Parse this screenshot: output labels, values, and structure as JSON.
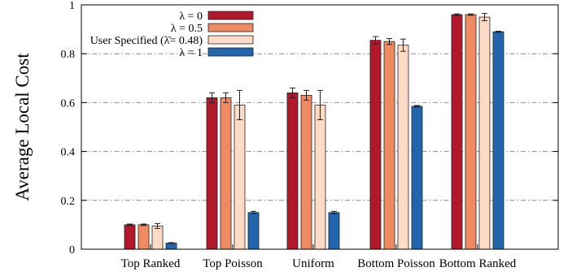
{
  "chart_data": {
    "type": "bar",
    "title": "",
    "xlabel": "",
    "ylabel": "Average Local Cost",
    "ylim": [
      0,
      1
    ],
    "yticks": [
      0,
      0.2,
      0.4,
      0.6,
      0.8,
      1
    ],
    "ytick_labels": [
      "0",
      "0.2",
      "0.4",
      "0.6",
      "0.8",
      "1"
    ],
    "grid": "horizontal dash-dot",
    "legend_position": "top-center",
    "categories": [
      "Top Ranked",
      "Top Poisson",
      "Uniform",
      "Bottom Poisson",
      "Bottom Ranked"
    ],
    "series": [
      {
        "name": "λ = 0",
        "color": "#b2182b",
        "values": [
          0.1,
          0.62,
          0.64,
          0.855,
          0.96
        ],
        "errors": [
          0.003,
          0.02,
          0.02,
          0.015,
          0.003
        ]
      },
      {
        "name": "λ = 0.5",
        "color": "#ef8a62",
        "values": [
          0.1,
          0.62,
          0.63,
          0.85,
          0.96
        ],
        "errors": [
          0.003,
          0.02,
          0.02,
          0.012,
          0.003
        ]
      },
      {
        "name": "User Specified (λ̄= 0.48)",
        "color": "#fddbc7",
        "values": [
          0.095,
          0.59,
          0.59,
          0.835,
          0.95
        ],
        "errors": [
          0.01,
          0.06,
          0.06,
          0.025,
          0.015
        ]
      },
      {
        "name": "λ = 1",
        "color": "#2166ac",
        "values": [
          0.025,
          0.15,
          0.15,
          0.585,
          0.89
        ],
        "errors": [
          0.002,
          0.005,
          0.005,
          0.003,
          0.002
        ]
      }
    ]
  }
}
